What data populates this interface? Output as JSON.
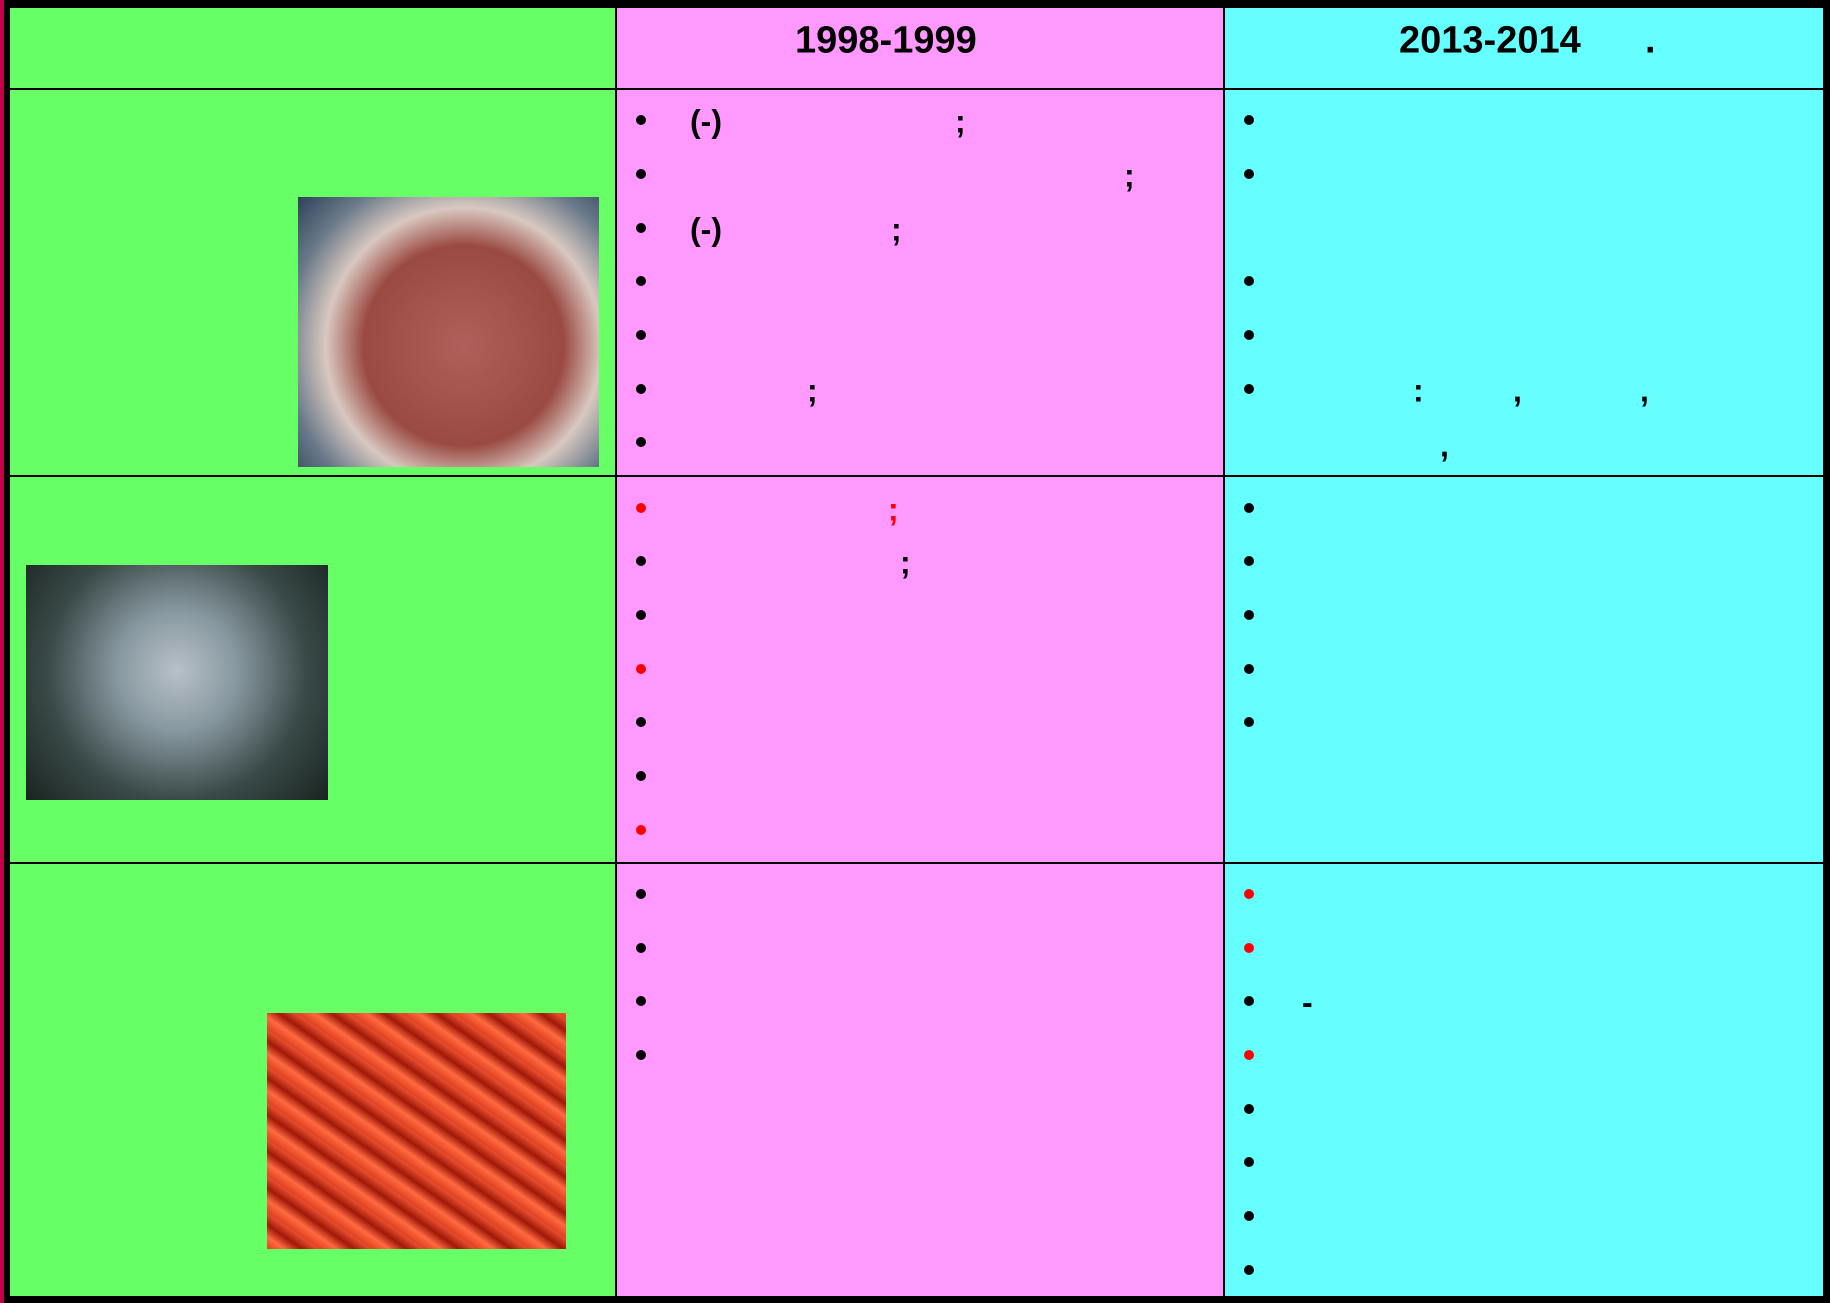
{
  "header": {
    "period_1": "1998-1999",
    "period_2": "2013-2014",
    "period_2_mark": "."
  },
  "fragments": [
    "(-)",
    ";",
    ";",
    "(-)",
    ";",
    ";",
    ":",
    ",",
    ",",
    ",",
    ";",
    ";",
    "-"
  ]
}
